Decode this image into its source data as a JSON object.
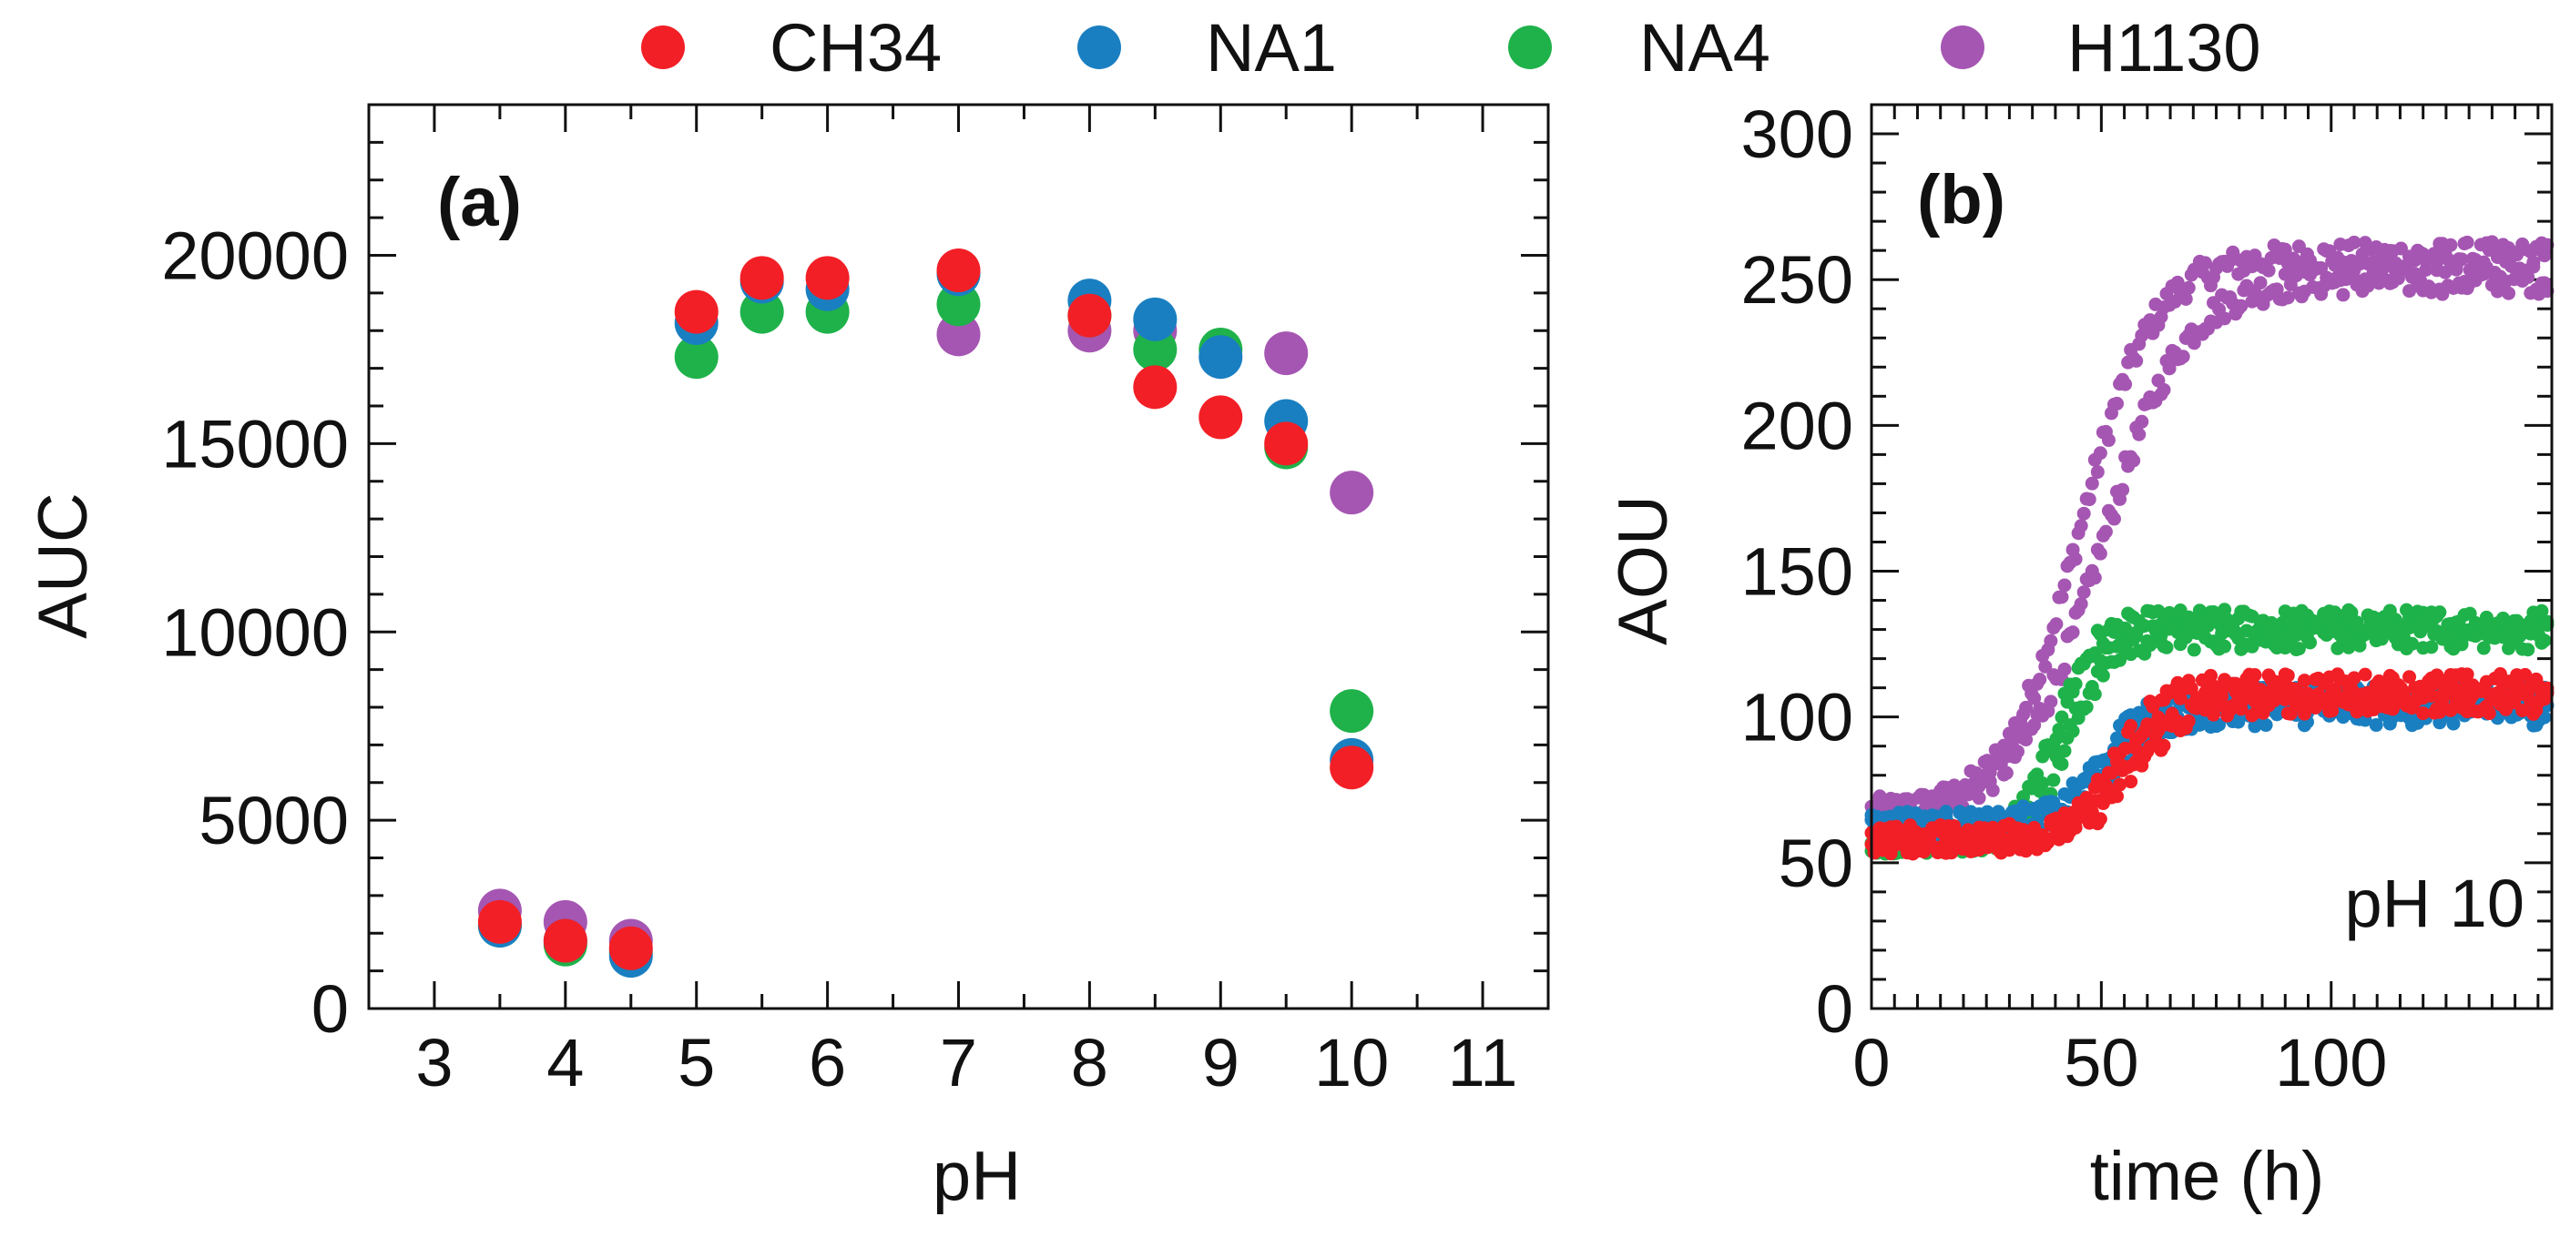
{
  "legend": [
    {
      "name": "CH34",
      "color": "#f21f26"
    },
    {
      "name": "NA1",
      "color": "#1a7fc1"
    },
    {
      "name": "NA4",
      "color": "#1fb24a"
    },
    {
      "name": "H1130",
      "color": "#a556b2"
    }
  ],
  "chart_data": [
    {
      "type": "scatter",
      "panel_label": "(a)",
      "title": "",
      "xlabel": "pH",
      "ylabel": "AUC",
      "xlim": [
        2.5,
        11.5
      ],
      "ylim": [
        0,
        24000
      ],
      "xticks": [
        3,
        4,
        5,
        6,
        7,
        8,
        9,
        10,
        11
      ],
      "yticks": [
        0,
        5000,
        10000,
        15000,
        20000
      ],
      "x": [
        3.5,
        4,
        4.5,
        5,
        5.5,
        6,
        7,
        8,
        8.5,
        9,
        9.5,
        10
      ],
      "series": [
        {
          "name": "H1130",
          "values": [
            2600,
            2300,
            1800,
            null,
            null,
            null,
            17900,
            18000,
            18000,
            null,
            17400,
            13700
          ]
        },
        {
          "name": "NA4",
          "values": [
            2200,
            1700,
            1500,
            17300,
            18500,
            18500,
            18700,
            18400,
            17500,
            17500,
            14900,
            7900
          ]
        },
        {
          "name": "NA1",
          "values": [
            2200,
            1800,
            1400,
            18200,
            19300,
            19100,
            19500,
            18800,
            18300,
            17300,
            15600,
            6600
          ]
        },
        {
          "name": "CH34",
          "values": [
            2300,
            1800,
            1600,
            18500,
            19400,
            19400,
            19600,
            18400,
            16500,
            15700,
            15000,
            6400
          ]
        }
      ]
    },
    {
      "type": "scatter",
      "panel_label": "(b)",
      "annotation": "pH 10",
      "title": "",
      "xlabel": "time (h)",
      "ylabel": "AOU",
      "xlim": [
        0,
        148
      ],
      "ylim": [
        0,
        310
      ],
      "xticks": [
        0,
        50,
        100
      ],
      "yticks": [
        0,
        50,
        100,
        150,
        200,
        250,
        300
      ],
      "x_step_h": 0.6,
      "series": [
        {
          "name": "H1130",
          "model": "two sigmoid replicates: baseline 67 h0-25, rise 28-70 h, plateau ~258 and ~250",
          "base": 67,
          "plateau": [
            258,
            250
          ],
          "mid": [
            45,
            50
          ],
          "width": [
            8,
            9
          ],
          "noise": 5
        },
        {
          "name": "NA4",
          "model": "baseline ~58, rise 30-55 h, plateau ~131",
          "base": 58,
          "plateau": [
            132,
            128
          ],
          "mid": [
            40,
            43
          ],
          "width": [
            4,
            4.5
          ],
          "noise": 5
        },
        {
          "name": "NA1",
          "model": "baseline ~63, rise 40-65 h, plateau ~104",
          "base": 63,
          "plateau": [
            106,
            102
          ],
          "mid": [
            50,
            52
          ],
          "width": [
            5,
            6
          ],
          "noise": 5
        },
        {
          "name": "CH34",
          "model": "baseline ~58, rise 42-70 h, plateau ~108",
          "base": 58,
          "plateau": [
            110,
            106
          ],
          "mid": [
            53,
            57
          ],
          "width": [
            5,
            6
          ],
          "noise": 5
        }
      ]
    }
  ]
}
